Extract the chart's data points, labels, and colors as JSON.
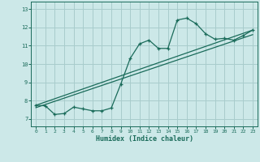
{
  "bg_color": "#cce8e8",
  "grid_color": "#a8cccc",
  "line_color": "#1a6b5a",
  "xlabel": "Humidex (Indice chaleur)",
  "xlim": [
    -0.5,
    23.5
  ],
  "ylim": [
    6.6,
    13.4
  ],
  "yticks": [
    7,
    8,
    9,
    10,
    11,
    12,
    13
  ],
  "xticks": [
    0,
    1,
    2,
    3,
    4,
    5,
    6,
    7,
    8,
    9,
    10,
    11,
    12,
    13,
    14,
    15,
    16,
    17,
    18,
    19,
    20,
    21,
    22,
    23
  ],
  "curve_x": [
    0,
    1,
    2,
    3,
    4,
    5,
    6,
    7,
    8,
    9,
    10,
    11,
    12,
    13,
    14,
    15,
    16,
    17,
    18,
    19,
    20,
    21,
    22,
    23
  ],
  "curve_y": [
    7.75,
    7.72,
    7.25,
    7.3,
    7.65,
    7.55,
    7.45,
    7.45,
    7.6,
    8.9,
    10.3,
    11.1,
    11.3,
    10.85,
    10.85,
    12.4,
    12.5,
    12.2,
    11.65,
    11.35,
    11.4,
    11.3,
    11.55,
    11.85
  ],
  "line1_x": [
    0,
    23
  ],
  "line1_y": [
    7.75,
    11.85
  ],
  "line2_x": [
    0,
    23
  ],
  "line2_y": [
    7.62,
    11.6
  ]
}
